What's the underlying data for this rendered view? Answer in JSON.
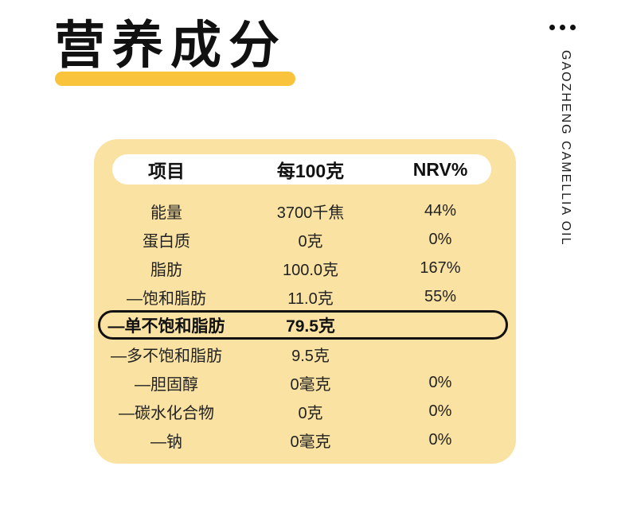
{
  "header": {
    "title": "营养成分",
    "brand_vertical": "GAOZHENG CAMELLIA OIL"
  },
  "icons": {
    "ellipsis": "three horizontal black dots"
  },
  "colors": {
    "accent_yellow": "#F9C33C",
    "card_yellow": "#FAE2A2",
    "pill_white": "#FFFFFF",
    "text_dark": "#111111",
    "background": "#FFFFFF"
  },
  "nutrition_table": {
    "headers": [
      "项目",
      "每100克",
      "NRV%"
    ],
    "rows": [
      {
        "item": "能量",
        "per_100g": "3700千焦",
        "nrv": "44%",
        "highlight": false
      },
      {
        "item": "蛋白质",
        "per_100g": "0克",
        "nrv": "0%",
        "highlight": false
      },
      {
        "item": "脂肪",
        "per_100g": "100.0克",
        "nrv": "167%",
        "highlight": false
      },
      {
        "item": "—饱和脂肪",
        "per_100g": "11.0克",
        "nrv": "55%",
        "highlight": false
      },
      {
        "item": "—单不饱和脂肪",
        "per_100g": "79.5克",
        "nrv": "",
        "highlight": true
      },
      {
        "item": "—多不饱和脂肪",
        "per_100g": "9.5克",
        "nrv": "",
        "highlight": false
      },
      {
        "item": "—胆固醇",
        "per_100g": "0毫克",
        "nrv": "0%",
        "highlight": false
      },
      {
        "item": "—碳水化合物",
        "per_100g": "0克",
        "nrv": "0%",
        "highlight": false
      },
      {
        "item": "—钠",
        "per_100g": "0毫克",
        "nrv": "0%",
        "highlight": false
      }
    ]
  }
}
